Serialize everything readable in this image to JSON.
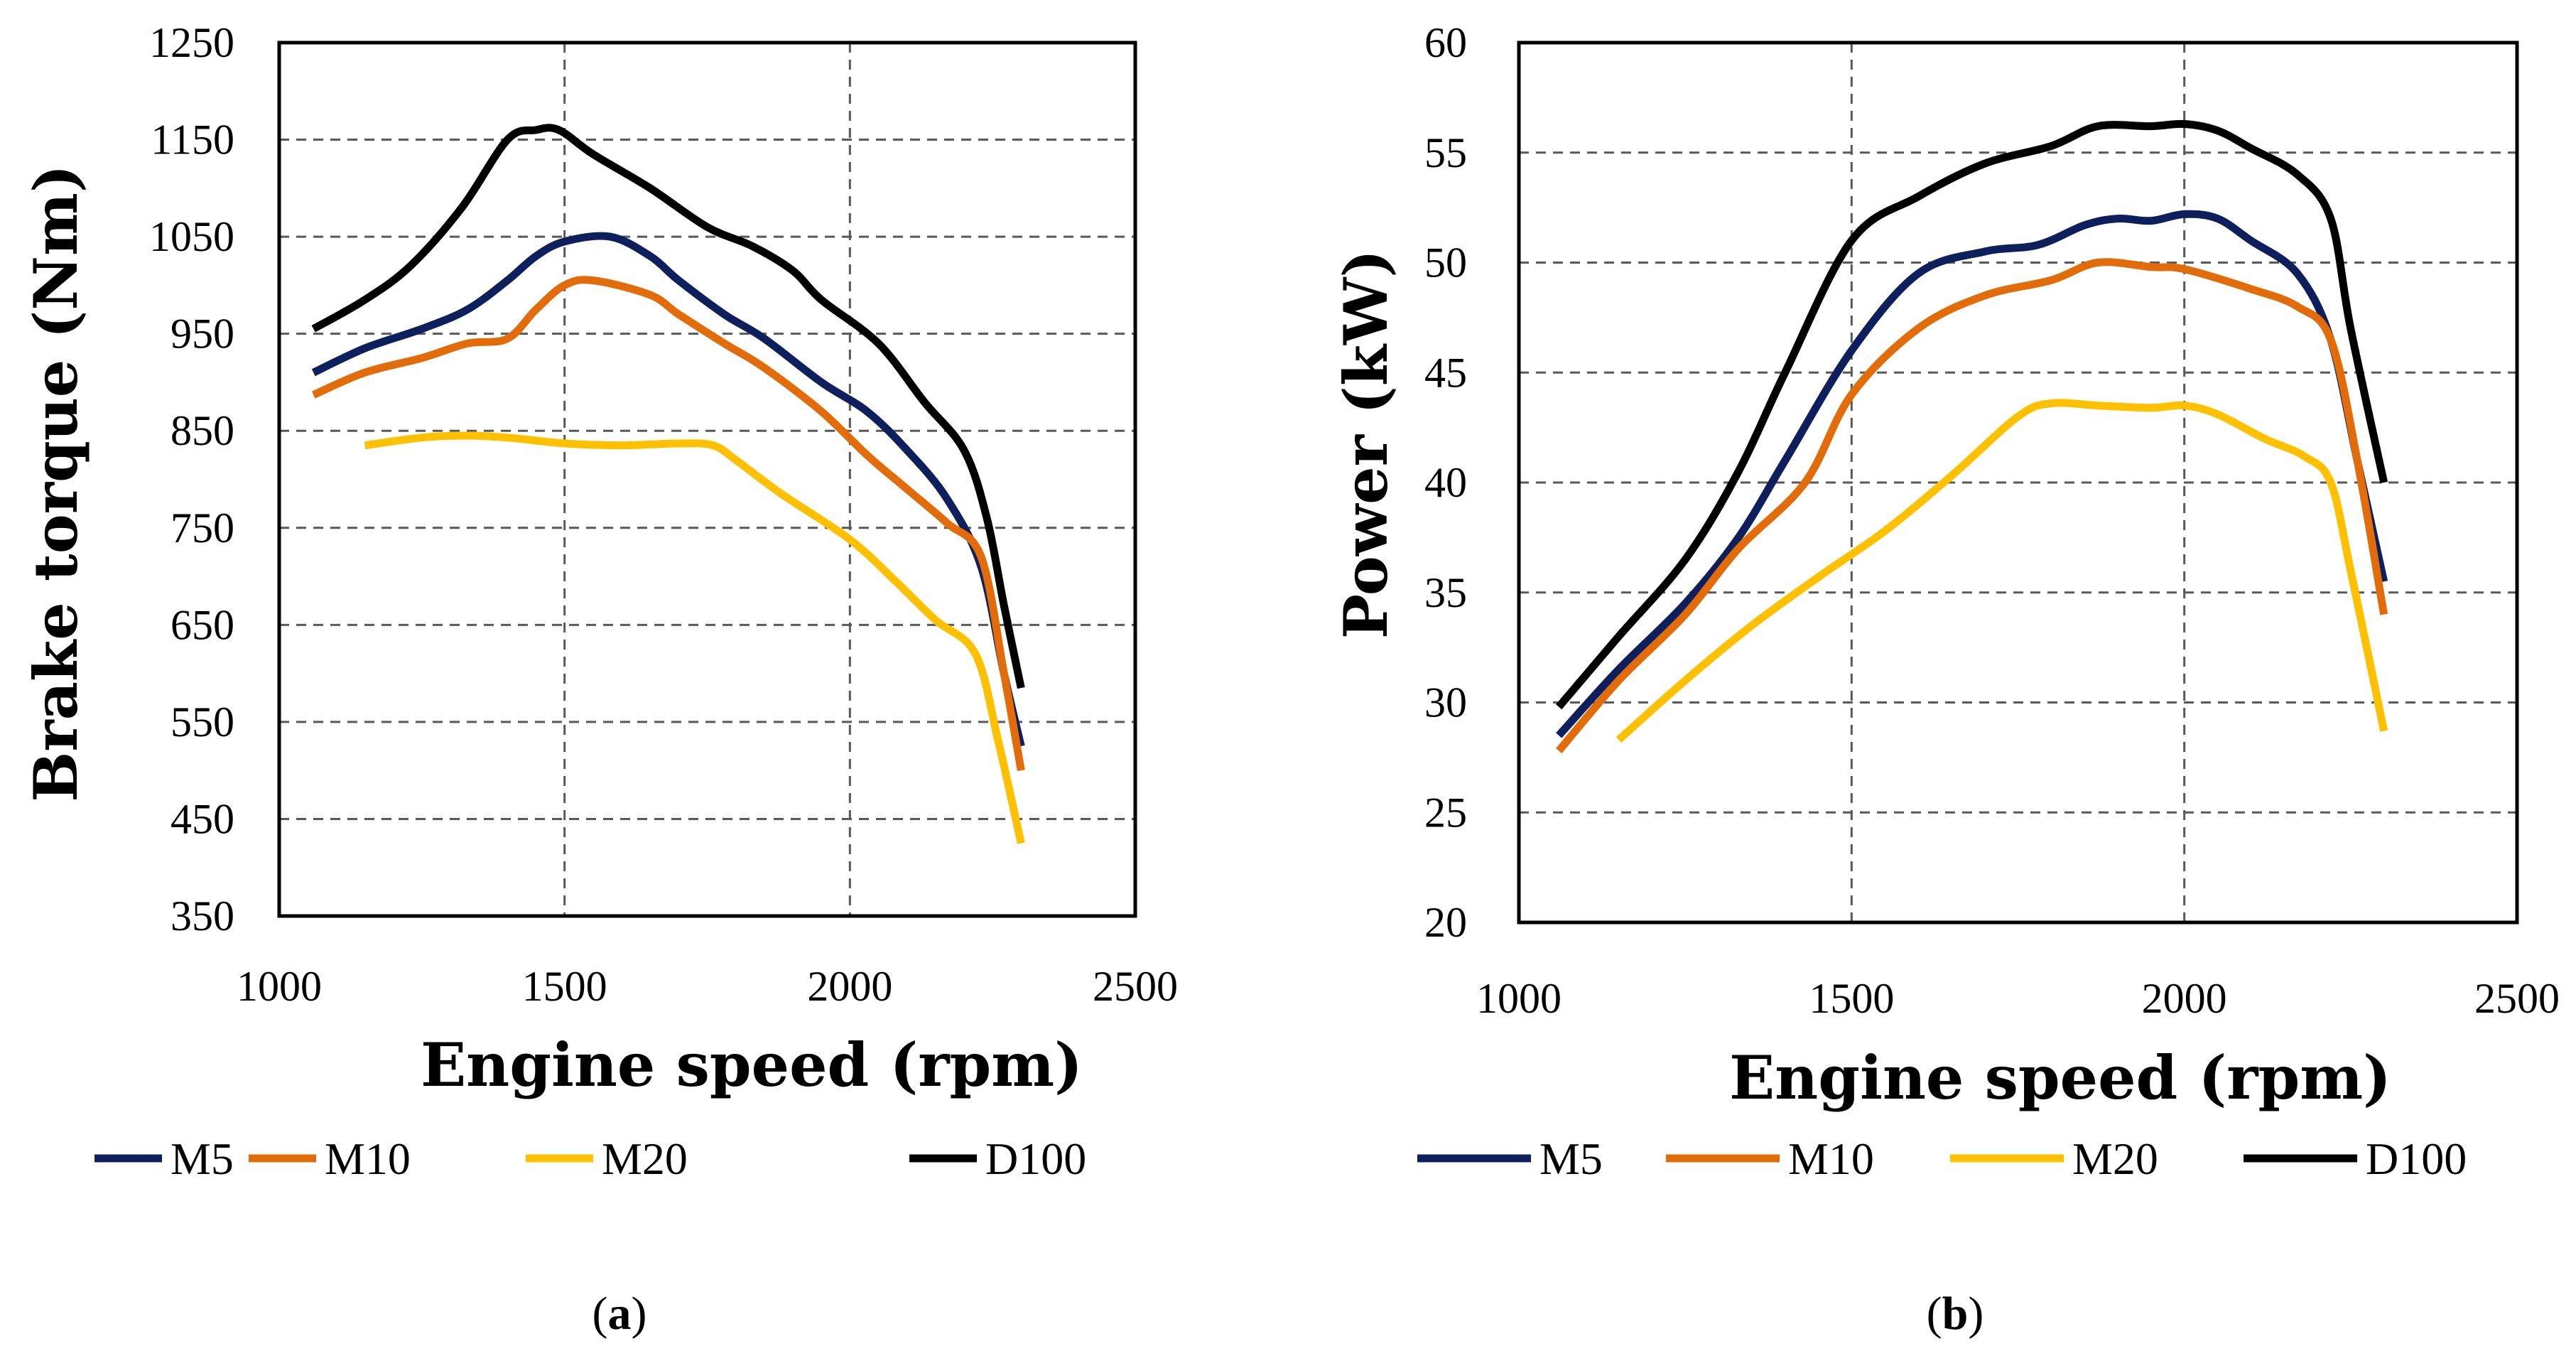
{
  "figure": {
    "colors": {
      "M5": "#0d1f5c",
      "M10": "#e36c0a",
      "M20": "#ffc000",
      "D100": "#000000",
      "grid": "#595959"
    }
  },
  "chart_data": [
    {
      "type": "line",
      "id": "a",
      "caption_open": "(",
      "caption_letter": "a",
      "caption_close": ")",
      "xlabel": "Engine speed (rpm)",
      "ylabel": "Brake torque (Nm)",
      "xlim": [
        1000,
        2500
      ],
      "ylim": [
        350,
        1250
      ],
      "xticks": [
        1000,
        1500,
        2000,
        2500
      ],
      "yticks": [
        350,
        450,
        550,
        650,
        750,
        850,
        950,
        1050,
        1150,
        1250
      ],
      "xgrid": [
        1500,
        2000
      ],
      "ygrid": [
        450,
        550,
        650,
        750,
        850,
        950,
        1050,
        1150
      ],
      "legend": [
        "M5",
        "M10",
        "M20",
        "D100"
      ],
      "series": [
        {
          "name": "M5",
          "x": [
            1060,
            1150,
            1250,
            1330,
            1400,
            1450,
            1500,
            1580,
            1650,
            1700,
            1780,
            1850,
            1950,
            2030,
            2100,
            2170,
            2230,
            2270,
            2300
          ],
          "y": [
            910,
            935,
            955,
            975,
            1005,
            1030,
            1045,
            1050,
            1030,
            1005,
            970,
            945,
            900,
            870,
            830,
            780,
            710,
            600,
            525
          ]
        },
        {
          "name": "M10",
          "x": [
            1060,
            1150,
            1250,
            1330,
            1400,
            1450,
            1500,
            1550,
            1650,
            1700,
            1780,
            1850,
            1950,
            2030,
            2100,
            2170,
            2230,
            2270,
            2300
          ],
          "y": [
            887,
            910,
            925,
            940,
            945,
            975,
            1000,
            1005,
            990,
            970,
            940,
            915,
            870,
            825,
            790,
            755,
            720,
            600,
            500
          ]
        },
        {
          "name": "M20",
          "x": [
            1150,
            1250,
            1330,
            1400,
            1500,
            1600,
            1700,
            1760,
            1800,
            1880,
            2000,
            2080,
            2150,
            2220,
            2260,
            2300
          ],
          "y": [
            835,
            843,
            845,
            843,
            837,
            835,
            837,
            835,
            820,
            785,
            738,
            695,
            655,
            620,
            530,
            425
          ]
        },
        {
          "name": "D100",
          "x": [
            1060,
            1150,
            1230,
            1320,
            1400,
            1450,
            1490,
            1550,
            1650,
            1750,
            1830,
            1900,
            1950,
            2050,
            2130,
            2200,
            2240,
            2270,
            2300
          ],
          "y": [
            955,
            985,
            1020,
            1080,
            1150,
            1160,
            1160,
            1135,
            1100,
            1060,
            1040,
            1015,
            985,
            940,
            880,
            830,
            760,
            670,
            585
          ]
        }
      ]
    },
    {
      "type": "line",
      "id": "b",
      "caption_open": "(",
      "caption_letter": "b",
      "caption_close": ")",
      "xlabel": "Engine speed (rpm)",
      "ylabel": "Power  (kW)",
      "xlim": [
        1000,
        2500
      ],
      "ylim": [
        20,
        60
      ],
      "xticks": [
        1000,
        1500,
        2000,
        2500
      ],
      "yticks": [
        20,
        25,
        30,
        35,
        40,
        45,
        50,
        55,
        60
      ],
      "xgrid": [
        1500,
        2000
      ],
      "ygrid": [
        25,
        30,
        35,
        40,
        45,
        50,
        55
      ],
      "legend": [
        "M5",
        "M10",
        "M20",
        "D100"
      ],
      "series": [
        {
          "name": "M5",
          "x": [
            1060,
            1150,
            1250,
            1330,
            1400,
            1500,
            1600,
            1700,
            1780,
            1850,
            1900,
            1950,
            2000,
            2050,
            2100,
            2170,
            2220,
            2260,
            2300
          ],
          "y": [
            28.5,
            31.5,
            34.5,
            37.5,
            41,
            46,
            49.5,
            50.5,
            50.8,
            51.7,
            52,
            51.9,
            52.2,
            52,
            51,
            49.5,
            46.5,
            41,
            35.5
          ]
        },
        {
          "name": "M10",
          "x": [
            1060,
            1150,
            1250,
            1330,
            1430,
            1500,
            1600,
            1700,
            1800,
            1870,
            1950,
            2000,
            2100,
            2170,
            2220,
            2260,
            2300
          ],
          "y": [
            27.8,
            31,
            34,
            37,
            40,
            44,
            47,
            48.5,
            49.2,
            50,
            49.8,
            49.7,
            48.8,
            48,
            46.5,
            41,
            34
          ]
        },
        {
          "name": "M20",
          "x": [
            1150,
            1250,
            1350,
            1450,
            1550,
            1650,
            1750,
            1800,
            1870,
            1950,
            2000,
            2050,
            2120,
            2180,
            2220,
            2250,
            2300
          ],
          "y": [
            28.3,
            31,
            33.5,
            35.7,
            37.8,
            40.3,
            43,
            43.6,
            43.5,
            43.4,
            43.5,
            43.1,
            42,
            41.2,
            40,
            36,
            28.7
          ]
        },
        {
          "name": "D100",
          "x": [
            1060,
            1150,
            1250,
            1330,
            1400,
            1500,
            1600,
            1700,
            1800,
            1870,
            1950,
            2000,
            2050,
            2100,
            2170,
            2220,
            2250,
            2300
          ],
          "y": [
            29.8,
            33,
            36.5,
            40.5,
            45,
            51,
            53,
            54.5,
            55.3,
            56.2,
            56.2,
            56.3,
            56,
            55.2,
            54,
            52,
            47,
            40
          ]
        }
      ]
    }
  ]
}
